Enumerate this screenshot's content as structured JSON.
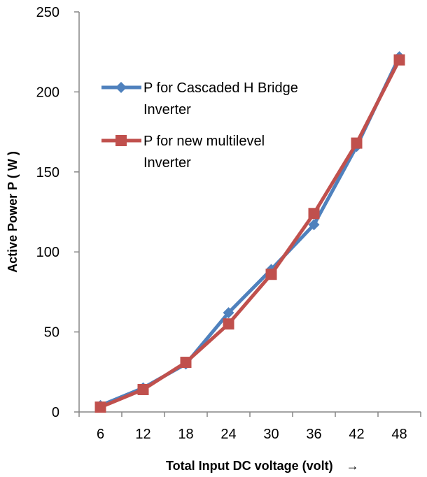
{
  "chart_data": {
    "type": "line",
    "title": "",
    "xlabel": "Total Input DC voltage (volt)",
    "xlabel_arrow": "→",
    "ylabel": "Active Power P ( W )",
    "categories": [
      "6",
      "12",
      "18",
      "24",
      "30",
      "36",
      "42",
      "48"
    ],
    "ylim": [
      0,
      250
    ],
    "yticks": [
      "0",
      "50",
      "100",
      "150",
      "200",
      "250"
    ],
    "grid": false,
    "legend_position": "upper-left inside plot",
    "series": [
      {
        "name_lines": [
          "P for Cascaded H Bridge",
          "Inverter"
        ],
        "values": [
          4,
          15,
          30,
          62,
          89,
          117,
          166,
          222
        ],
        "color": "#4F81BD",
        "marker": "diamond"
      },
      {
        "name_lines": [
          "P for new multilevel",
          "Inverter"
        ],
        "values": [
          3,
          14,
          31,
          55,
          86,
          124,
          168,
          220
        ],
        "color": "#C0504D",
        "marker": "square"
      }
    ]
  }
}
